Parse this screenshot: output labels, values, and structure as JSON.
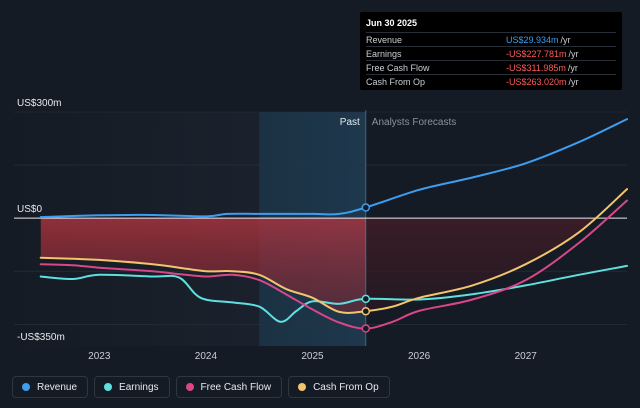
{
  "colors": {
    "revenue": "#3d9df0",
    "earnings": "#5fe0e0",
    "free_cash_flow": "#d9468a",
    "cash_from_op": "#f2c46d"
  },
  "tooltip": {
    "title": "Jun 30 2025",
    "rows": [
      {
        "name": "Revenue",
        "value": "US$29.934m",
        "unit": "/yr",
        "color": "#3d9df0"
      },
      {
        "name": "Earnings",
        "value": "-US$227.781m",
        "unit": "/yr",
        "color": "#ff5a5a"
      },
      {
        "name": "Free Cash Flow",
        "value": "-US$311.985m",
        "unit": "/yr",
        "color": "#ff5a5a"
      },
      {
        "name": "Cash From Op",
        "value": "-US$263.020m",
        "unit": "/yr",
        "color": "#ff5a5a"
      }
    ]
  },
  "legend": [
    {
      "label": "Revenue",
      "color": "#3d9df0"
    },
    {
      "label": "Earnings",
      "color": "#5fe0e0"
    },
    {
      "label": "Free Cash Flow",
      "color": "#d9468a"
    },
    {
      "label": "Cash From Op",
      "color": "#f2c46d"
    }
  ],
  "chart_data": {
    "type": "line",
    "title": "",
    "xlabel": "",
    "ylabel": "",
    "units": "US$m",
    "ylim": [
      -350,
      300
    ],
    "xlim": [
      2022.2,
      2027.95
    ],
    "y_tick_labels": [
      {
        "value": 300,
        "label": "US$300m"
      },
      {
        "value": 0,
        "label": "US$0"
      },
      {
        "value": -350,
        "label": "-US$350m"
      }
    ],
    "x_ticks": [
      {
        "value": 2023,
        "label": "2023"
      },
      {
        "value": 2024,
        "label": "2024"
      },
      {
        "value": 2025,
        "label": "2025"
      },
      {
        "value": 2026,
        "label": "2026"
      },
      {
        "value": 2027,
        "label": "2027"
      }
    ],
    "divider_x": 2025.5,
    "past_label": "Past",
    "forecast_label": "Analysts Forecasts",
    "highlight_range": [
      2024.5,
      2025.5
    ],
    "series": [
      {
        "name": "Revenue",
        "key": "revenue",
        "points": [
          [
            2022.45,
            3
          ],
          [
            2023,
            8
          ],
          [
            2023.5,
            9
          ],
          [
            2024,
            5
          ],
          [
            2024.2,
            12
          ],
          [
            2024.5,
            12
          ],
          [
            2025,
            12
          ],
          [
            2025.25,
            12
          ],
          [
            2025.5,
            30
          ],
          [
            2026,
            80
          ],
          [
            2026.5,
            115
          ],
          [
            2027,
            155
          ],
          [
            2027.5,
            215
          ],
          [
            2027.95,
            280
          ]
        ]
      },
      {
        "name": "Earnings",
        "key": "earnings",
        "points": [
          [
            2022.45,
            -165
          ],
          [
            2022.75,
            -172
          ],
          [
            2023,
            -160
          ],
          [
            2023.5,
            -165
          ],
          [
            2023.75,
            -168
          ],
          [
            2023.95,
            -225
          ],
          [
            2024.25,
            -238
          ],
          [
            2024.5,
            -250
          ],
          [
            2024.7,
            -293
          ],
          [
            2024.85,
            -262
          ],
          [
            2025,
            -235
          ],
          [
            2025.25,
            -242
          ],
          [
            2025.5,
            -228
          ],
          [
            2026,
            -230
          ],
          [
            2026.5,
            -215
          ],
          [
            2027,
            -190
          ],
          [
            2027.5,
            -160
          ],
          [
            2027.95,
            -135
          ]
        ]
      },
      {
        "name": "Free Cash Flow",
        "key": "free_cash_flow",
        "points": [
          [
            2022.45,
            -130
          ],
          [
            2022.75,
            -133
          ],
          [
            2023,
            -140
          ],
          [
            2023.5,
            -150
          ],
          [
            2023.75,
            -158
          ],
          [
            2024,
            -165
          ],
          [
            2024.25,
            -160
          ],
          [
            2024.5,
            -175
          ],
          [
            2024.75,
            -215
          ],
          [
            2025,
            -258
          ],
          [
            2025.25,
            -295
          ],
          [
            2025.5,
            -312
          ],
          [
            2025.75,
            -293
          ],
          [
            2026,
            -262
          ],
          [
            2026.5,
            -230
          ],
          [
            2027,
            -175
          ],
          [
            2027.5,
            -70
          ],
          [
            2027.95,
            50
          ]
        ]
      },
      {
        "name": "Cash From Op",
        "key": "cash_from_op",
        "points": [
          [
            2022.45,
            -112
          ],
          [
            2022.75,
            -115
          ],
          [
            2023,
            -118
          ],
          [
            2023.5,
            -130
          ],
          [
            2023.75,
            -140
          ],
          [
            2024,
            -150
          ],
          [
            2024.25,
            -150
          ],
          [
            2024.5,
            -160
          ],
          [
            2024.75,
            -200
          ],
          [
            2025,
            -225
          ],
          [
            2025.25,
            -265
          ],
          [
            2025.5,
            -263
          ],
          [
            2025.75,
            -250
          ],
          [
            2026,
            -225
          ],
          [
            2026.5,
            -190
          ],
          [
            2027,
            -130
          ],
          [
            2027.5,
            -40
          ],
          [
            2027.95,
            82
          ]
        ]
      }
    ],
    "highlighted_points": [
      {
        "series": "revenue",
        "x": 2025.5,
        "y": 30
      },
      {
        "series": "earnings",
        "x": 2025.5,
        "y": -228
      },
      {
        "series": "cash_from_op",
        "x": 2025.5,
        "y": -263
      },
      {
        "series": "free_cash_flow",
        "x": 2025.5,
        "y": -312
      }
    ]
  }
}
